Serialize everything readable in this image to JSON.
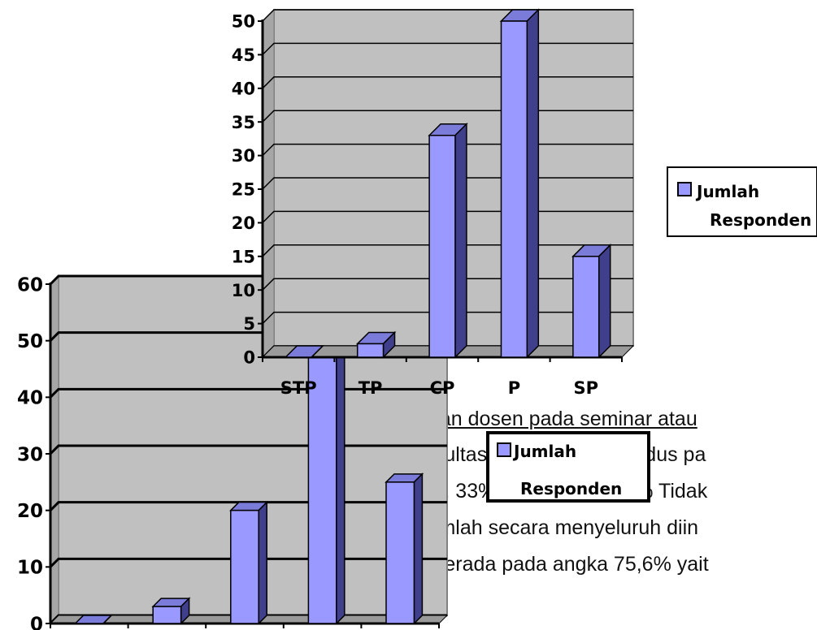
{
  "page_text": {
    "line1": "atan dosen pada seminar atau",
    "line2": "akultas Tarbiyah IAIN Kudus pa",
    "line3": "as, 33% Cukup Puas, 2% Tidak",
    "line4": "jumlah secara menyeluruh diin",
    "line5": "l berada pada angka 75,6% yait"
  },
  "chart_data": [
    {
      "type": "bar",
      "categories": [
        "STP",
        "TP",
        "CP",
        "P",
        "SP"
      ],
      "series": [
        {
          "name": "Jumlah Responden",
          "values": [
            0,
            2,
            33,
            50,
            15
          ]
        }
      ],
      "ylim": [
        0,
        50
      ],
      "yticks": [
        0,
        5,
        10,
        15,
        20,
        25,
        30,
        35,
        40,
        45,
        50
      ],
      "grid": true,
      "legend": "right",
      "colors": {
        "bar_front": "#9999ff",
        "bar_side": "#3f3f8c",
        "bar_top": "#7b7bd9",
        "plot_bg": "#c0c0c0"
      }
    },
    {
      "type": "bar",
      "categories": [
        "",
        "",
        "",
        "",
        ""
      ],
      "series": [
        {
          "name": "Jumlah Responden",
          "values": [
            0,
            3,
            20,
            47,
            25
          ]
        }
      ],
      "ylim": [
        0,
        60
      ],
      "yticks": [
        0,
        10,
        20,
        30,
        40,
        50,
        60
      ],
      "grid": true,
      "legend": "center-right",
      "colors": {
        "bar_front": "#9999ff",
        "bar_side": "#3f3f8c",
        "bar_top": "#7b7bd9",
        "plot_bg": "#c0c0c0"
      }
    }
  ]
}
